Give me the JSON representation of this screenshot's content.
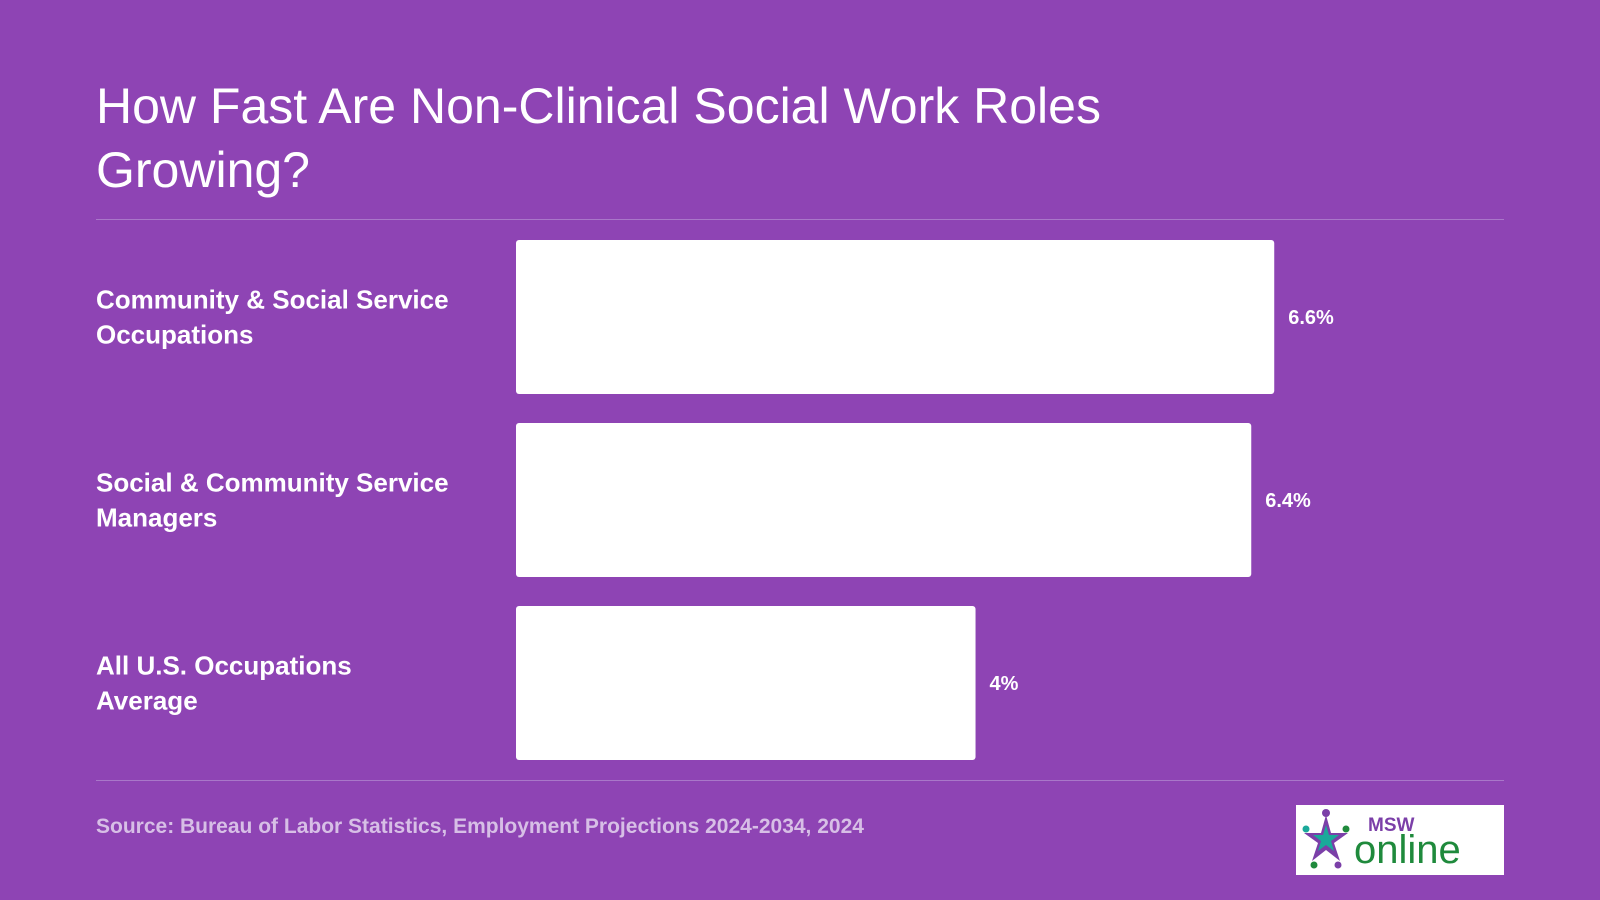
{
  "chart_data": {
    "type": "bar",
    "orientation": "horizontal",
    "title": "How Fast Are Non-Clinical Social Work Roles Growing?",
    "categories": [
      [
        "Community & Social Service",
        "Occupations"
      ],
      [
        "Social & Community Service",
        "Managers"
      ],
      [
        "All U.S. Occupations",
        "Average"
      ]
    ],
    "values": [
      6.6,
      6.4,
      4
    ],
    "value_labels": [
      "6.6%",
      "6.4%",
      "4%"
    ],
    "xlim": [
      0,
      8.6
    ],
    "grid": false,
    "bar_color": "#ffffff"
  },
  "source": "Source: Bureau of Labor Statistics, Employment Projections 2024-2034, 2024",
  "logo": {
    "top_text": "MSW",
    "main_text": "online"
  },
  "colors": {
    "background": "#8e44b4",
    "logo_green": "#1f8a3c",
    "logo_purple": "#7b3fa8",
    "logo_teal": "#1aa99a"
  }
}
